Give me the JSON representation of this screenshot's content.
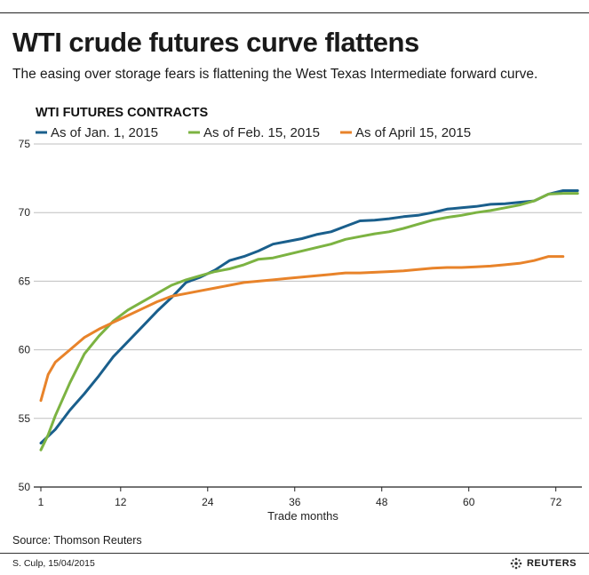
{
  "header": {
    "title": "WTI crude futures curve flattens",
    "subtitle": "The easing over storage fears is flattening the West Texas Intermediate forward curve."
  },
  "footer": {
    "source": "Source: Thomson Reuters",
    "credit": "S. Culp, 15/04/2015",
    "logo_text": "REUTERS"
  },
  "colors": {
    "jan": "#1a5f8c",
    "feb": "#7cb342",
    "apr": "#e8832a",
    "grid": "#bfbfbf",
    "axis": "#222222"
  },
  "chart_data": {
    "type": "line",
    "section_label": "WTI FUTURES CONTRACTS",
    "xlabel": "Trade months",
    "ylabel": "",
    "ylim": [
      50,
      75
    ],
    "xlim": [
      1,
      74
    ],
    "yticks": [
      50,
      55,
      60,
      65,
      70,
      75
    ],
    "xticks": [
      1,
      12,
      24,
      36,
      48,
      60,
      72
    ],
    "grid": "horizontal",
    "legend_position": "top",
    "series": [
      {
        "name": "As of Jan. 1, 2015",
        "color": "#1a5f8c",
        "x": [
          1,
          3,
          5,
          7,
          9,
          11,
          13,
          15,
          17,
          19,
          21,
          23,
          25,
          27,
          29,
          31,
          33,
          35,
          37,
          39,
          41,
          43,
          45,
          47,
          49,
          51,
          53,
          55,
          57,
          59,
          61,
          63,
          65,
          67,
          69,
          71,
          73,
          75
        ],
        "y": [
          53.2,
          54.2,
          55.6,
          56.8,
          58.1,
          59.5,
          60.6,
          61.7,
          62.8,
          63.8,
          64.9,
          65.3,
          65.8,
          66.5,
          66.8,
          67.2,
          67.7,
          67.9,
          68.1,
          68.4,
          68.6,
          69.0,
          69.4,
          69.45,
          69.55,
          69.7,
          69.8,
          70.0,
          70.25,
          70.35,
          70.45,
          70.6,
          70.65,
          70.75,
          70.85,
          71.35,
          71.6,
          71.6
        ]
      },
      {
        "name": "As of Feb. 15, 2015",
        "color": "#7cb342",
        "x": [
          1,
          2,
          3,
          5,
          7,
          9,
          11,
          13,
          15,
          17,
          19,
          21,
          23,
          25,
          27,
          29,
          31,
          33,
          35,
          37,
          39,
          41,
          43,
          45,
          47,
          49,
          51,
          53,
          55,
          57,
          59,
          61,
          63,
          65,
          67,
          69,
          71,
          73,
          75
        ],
        "y": [
          52.7,
          53.8,
          55.2,
          57.6,
          59.7,
          61.0,
          62.1,
          62.9,
          63.5,
          64.1,
          64.7,
          65.1,
          65.4,
          65.7,
          65.9,
          66.2,
          66.6,
          66.7,
          66.95,
          67.2,
          67.45,
          67.7,
          68.05,
          68.25,
          68.45,
          68.6,
          68.85,
          69.15,
          69.45,
          69.65,
          69.8,
          70.0,
          70.15,
          70.35,
          70.55,
          70.85,
          71.35,
          71.4,
          71.4
        ]
      },
      {
        "name": "As of April 15, 2015",
        "color": "#e8832a",
        "x": [
          1,
          2,
          3,
          5,
          7,
          9,
          11,
          13,
          15,
          17,
          19,
          21,
          23,
          25,
          27,
          29,
          31,
          33,
          35,
          37,
          39,
          41,
          43,
          45,
          47,
          49,
          51,
          53,
          55,
          57,
          59,
          61,
          63,
          65,
          67,
          69,
          71,
          73
        ],
        "y": [
          56.3,
          58.2,
          59.1,
          60.0,
          60.9,
          61.5,
          62.0,
          62.5,
          63.0,
          63.5,
          63.9,
          64.1,
          64.3,
          64.5,
          64.7,
          64.9,
          65.0,
          65.1,
          65.2,
          65.3,
          65.4,
          65.5,
          65.6,
          65.6,
          65.65,
          65.7,
          65.75,
          65.85,
          65.95,
          66.0,
          66.0,
          66.05,
          66.1,
          66.2,
          66.3,
          66.5,
          66.8,
          66.8
        ]
      }
    ]
  }
}
